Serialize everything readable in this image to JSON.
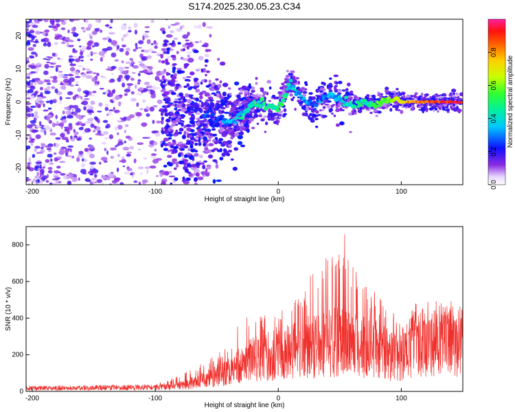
{
  "title": "S174.2025.230.05.23.C34",
  "chart_data": [
    {
      "type": "heatmap",
      "xlabel": "Height of straight line (km)",
      "ylabel": "Frequency (Hz)",
      "xlim": [
        -205,
        150
      ],
      "ylim": [
        -25,
        25
      ],
      "xticks": [
        -200,
        -100,
        0,
        100
      ],
      "yticks": [
        -20,
        -10,
        0,
        10,
        20
      ],
      "xtick_labels": [
        "-200",
        "-100",
        "0",
        "100"
      ],
      "ytick_labels": [
        "-20",
        "-10",
        "0",
        "10",
        "20"
      ],
      "colorbar": {
        "label": "Normalized spectral amplitude",
        "range": [
          0,
          1
        ],
        "ticks": [
          0.0,
          0.2,
          0.4,
          0.6,
          0.8
        ],
        "tick_labels": [
          "0.0",
          "0.2",
          "0.4",
          "0.6",
          "0.8"
        ]
      },
      "ridge": {
        "x": [
          -60,
          -40,
          -30,
          -20,
          -10,
          0,
          5,
          10,
          15,
          20,
          30,
          40,
          50,
          60,
          70,
          80,
          90,
          100,
          110,
          120,
          130,
          140,
          150
        ],
        "freq": [
          -4,
          -6,
          -4,
          0,
          -1,
          -2,
          1,
          6,
          3,
          1,
          -1,
          2,
          1,
          -1,
          0,
          -1,
          1,
          0,
          0,
          0,
          0,
          0,
          0
        ],
        "amplitude": [
          0.25,
          0.3,
          0.4,
          0.45,
          0.45,
          0.5,
          0.45,
          0.4,
          0.35,
          0.3,
          0.3,
          0.3,
          0.35,
          0.4,
          0.45,
          0.55,
          0.6,
          0.7,
          0.8,
          0.85,
          0.9,
          0.92,
          0.92
        ]
      },
      "noise_region": "x < -60 km, broadband scattered low-amplitude energy across all frequencies"
    },
    {
      "type": "line",
      "xlabel": "Height of straight line (km)",
      "ylabel": "SNR (10 * v/v)",
      "xlim": [
        -205,
        150
      ],
      "ylim": [
        0,
        900
      ],
      "xticks": [
        -200,
        -100,
        0,
        100
      ],
      "yticks": [
        0,
        200,
        400,
        600,
        800
      ],
      "xtick_labels": [
        "-200",
        "-100",
        "0",
        "100"
      ],
      "ytick_labels": [
        "0",
        "200",
        "400",
        "600",
        "800"
      ],
      "series": [
        {
          "name": "SNR",
          "color": "#f0302c",
          "envelope_x": [
            -205,
            -100,
            -80,
            -60,
            -40,
            -30,
            -20,
            -10,
            0,
            10,
            20,
            30,
            40,
            50,
            55,
            60,
            70,
            80,
            90,
            100,
            110,
            120,
            130,
            140,
            150
          ],
          "envelope_mean": [
            18,
            22,
            35,
            70,
            120,
            160,
            200,
            210,
            220,
            240,
            260,
            280,
            290,
            300,
            300,
            290,
            270,
            250,
            220,
            200,
            310,
            320,
            320,
            320,
            310
          ],
          "envelope_peak": [
            30,
            40,
            90,
            160,
            250,
            450,
            420,
            420,
            430,
            480,
            530,
            720,
            780,
            820,
            890,
            700,
            600,
            550,
            480,
            360,
            380,
            390,
            400,
            400,
            380
          ]
        }
      ]
    }
  ]
}
